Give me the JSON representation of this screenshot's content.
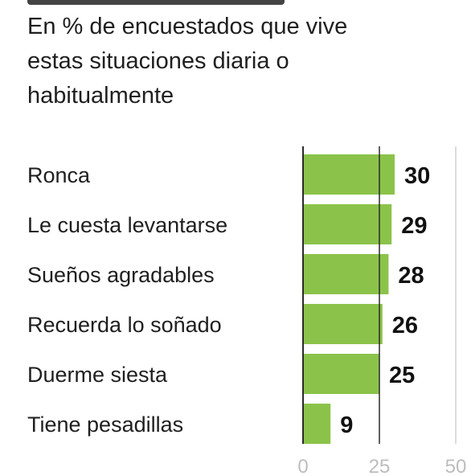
{
  "subtitle": "En % de encuestados que vive\nestas situaciones diaria o\nhabitualmente",
  "chart_data": {
    "type": "bar",
    "orientation": "horizontal",
    "title": "",
    "subtitle": "En % de encuestados que vive estas situaciones diaria o habitualmente",
    "categories": [
      "Ronca",
      "Le cuesta levantarse",
      "Sueños agradables",
      "Recuerda lo soñado",
      "Duerme siesta",
      "Tiene pesadillas"
    ],
    "values": [
      30,
      29,
      28,
      26,
      25,
      9
    ],
    "xlim": [
      0,
      50
    ],
    "x_ticks": [
      "0",
      "25",
      "50"
    ],
    "grid": true,
    "data_labels": true,
    "colors": {
      "bar": "#8bc34a",
      "gridline": "#333333",
      "axis_text": "#bdbdbd",
      "text": "#1f1f1f"
    }
  }
}
